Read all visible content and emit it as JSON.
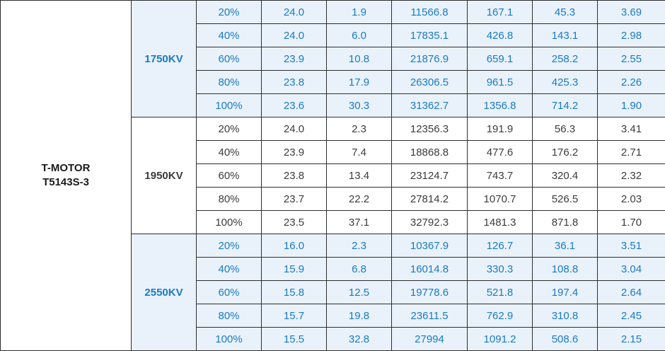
{
  "motor": {
    "name_line1": "T-MOTOR",
    "name_line2": "T5143S-3"
  },
  "colors": {
    "accent_text": "#1a7ac4",
    "accent_bg": "#e9f2fb",
    "dark_text": "#3c3c3c",
    "border": "#2e2e2e"
  },
  "groups": [
    {
      "kv": "1750KV",
      "style": "blue",
      "rows": [
        [
          "20%",
          "24.0",
          "1.9",
          "11566.8",
          "167.1",
          "45.3",
          "3.69"
        ],
        [
          "40%",
          "24.0",
          "6.0",
          "17835.1",
          "426.8",
          "143.1",
          "2.98"
        ],
        [
          "60%",
          "23.9",
          "10.8",
          "21876.9",
          "659.1",
          "258.2",
          "2.55"
        ],
        [
          "80%",
          "23.8",
          "17.9",
          "26306.5",
          "961.5",
          "425.3",
          "2.26"
        ],
        [
          "100%",
          "23.6",
          "30.3",
          "31362.7",
          "1356.8",
          "714.2",
          "1.90"
        ]
      ]
    },
    {
      "kv": "1950KV",
      "style": "dark",
      "rows": [
        [
          "20%",
          "24.0",
          "2.3",
          "12356.3",
          "191.9",
          "56.3",
          "3.41"
        ],
        [
          "40%",
          "23.9",
          "7.4",
          "18868.8",
          "477.6",
          "176.2",
          "2.71"
        ],
        [
          "60%",
          "23.8",
          "13.4",
          "23124.7",
          "743.7",
          "320.4",
          "2.32"
        ],
        [
          "80%",
          "23.7",
          "22.2",
          "27814.2",
          "1070.7",
          "526.5",
          "2.03"
        ],
        [
          "100%",
          "23.5",
          "37.1",
          "32792.3",
          "1481.3",
          "871.8",
          "1.70"
        ]
      ]
    },
    {
      "kv": "2550KV",
      "style": "blue",
      "rows": [
        [
          "20%",
          "16.0",
          "2.3",
          "10367.9",
          "126.7",
          "36.1",
          "3.51"
        ],
        [
          "40%",
          "15.9",
          "6.8",
          "16014.8",
          "330.3",
          "108.8",
          "3.04"
        ],
        [
          "60%",
          "15.8",
          "12.5",
          "19778.6",
          "521.8",
          "197.4",
          "2.64"
        ],
        [
          "80%",
          "15.7",
          "19.8",
          "23611.5",
          "762.9",
          "310.8",
          "2.45"
        ],
        [
          "100%",
          "15.5",
          "32.8",
          "27994",
          "1091.2",
          "508.6",
          "2.15"
        ]
      ]
    }
  ]
}
